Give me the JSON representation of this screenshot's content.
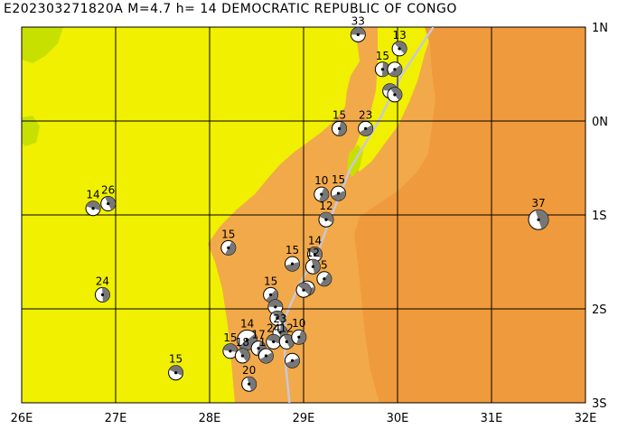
{
  "header": {
    "event_id": "E202303271820A",
    "magnitude": "M=4.7",
    "depth": "h= 14",
    "region": "DEMOCRATIC REPUBLIC OF CONGO"
  },
  "axes": {
    "lon_ticks": [
      "26E",
      "27E",
      "28E",
      "29E",
      "30E",
      "31E",
      "32E"
    ],
    "lat_ticks": [
      "1N",
      "0N",
      "1S",
      "2S",
      "3S"
    ],
    "lon_range": [
      26,
      32
    ],
    "lat_range": [
      -3,
      1
    ]
  },
  "colors": {
    "lowland": "#f0f000",
    "upland": "#f2a94a",
    "highland": "#ef9a3c",
    "lake": "#c8e000",
    "plate_boundary": "#c8c8d8",
    "grid": "#000000",
    "focal_shaded": "#777777"
  },
  "events": [
    {
      "lon": 29.58,
      "lat": 0.92,
      "depth": "33"
    },
    {
      "lon": 30.02,
      "lat": 0.77,
      "depth": "13"
    },
    {
      "lon": 29.84,
      "lat": 0.55,
      "depth": "15"
    },
    {
      "lon": 29.97,
      "lat": 0.55,
      "depth": ""
    },
    {
      "lon": 29.92,
      "lat": 0.32,
      "depth": ""
    },
    {
      "lon": 29.97,
      "lat": 0.28,
      "depth": ""
    },
    {
      "lon": 29.38,
      "lat": -0.08,
      "depth": "15"
    },
    {
      "lon": 29.66,
      "lat": -0.08,
      "depth": "23"
    },
    {
      "lon": 26.76,
      "lat": -0.93,
      "depth": "14"
    },
    {
      "lon": 26.92,
      "lat": -0.88,
      "depth": "26"
    },
    {
      "lon": 29.19,
      "lat": -0.78,
      "depth": "10"
    },
    {
      "lon": 29.37,
      "lat": -0.77,
      "depth": "15"
    },
    {
      "lon": 29.24,
      "lat": -1.05,
      "depth": "12"
    },
    {
      "lon": 31.5,
      "lat": -1.05,
      "depth": "37"
    },
    {
      "lon": 28.2,
      "lat": -1.35,
      "depth": "15"
    },
    {
      "lon": 28.88,
      "lat": -1.52,
      "depth": "15"
    },
    {
      "lon": 29.12,
      "lat": -1.42,
      "depth": "14"
    },
    {
      "lon": 29.1,
      "lat": -1.55,
      "depth": "12"
    },
    {
      "lon": 29.22,
      "lat": -1.68,
      "depth": "5"
    },
    {
      "lon": 29.04,
      "lat": -1.78,
      "depth": ""
    },
    {
      "lon": 29.0,
      "lat": -1.8,
      "depth": ""
    },
    {
      "lon": 26.86,
      "lat": -1.85,
      "depth": "24"
    },
    {
      "lon": 28.65,
      "lat": -1.85,
      "depth": "15"
    },
    {
      "lon": 28.7,
      "lat": -1.98,
      "depth": ""
    },
    {
      "lon": 28.72,
      "lat": -2.1,
      "depth": ""
    },
    {
      "lon": 28.75,
      "lat": -2.25,
      "depth": "23"
    },
    {
      "lon": 28.4,
      "lat": -2.33,
      "depth": "14"
    },
    {
      "lon": 28.22,
      "lat": -2.45,
      "depth": "15"
    },
    {
      "lon": 28.35,
      "lat": -2.5,
      "depth": "18"
    },
    {
      "lon": 28.52,
      "lat": -2.42,
      "depth": "17"
    },
    {
      "lon": 28.6,
      "lat": -2.5,
      "depth": "18"
    },
    {
      "lon": 28.68,
      "lat": -2.35,
      "depth": "24"
    },
    {
      "lon": 28.82,
      "lat": -2.35,
      "depth": "12"
    },
    {
      "lon": 28.95,
      "lat": -2.3,
      "depth": "10"
    },
    {
      "lon": 28.88,
      "lat": -2.55,
      "depth": ""
    },
    {
      "lon": 27.64,
      "lat": -2.68,
      "depth": "15"
    },
    {
      "lon": 28.42,
      "lat": -2.8,
      "depth": "20"
    }
  ],
  "highlight_event_index": 26,
  "plate_boundary_path": [
    [
      30.38,
      1.0
    ],
    [
      30.05,
      0.5
    ],
    [
      29.8,
      0.0
    ],
    [
      29.5,
      -0.5
    ],
    [
      29.3,
      -1.0
    ],
    [
      29.15,
      -1.4
    ],
    [
      28.95,
      -1.75
    ],
    [
      28.8,
      -2.1
    ],
    [
      28.8,
      -2.5
    ],
    [
      28.85,
      -3.0
    ]
  ],
  "focal_mechanism": "beach-ball-icon"
}
